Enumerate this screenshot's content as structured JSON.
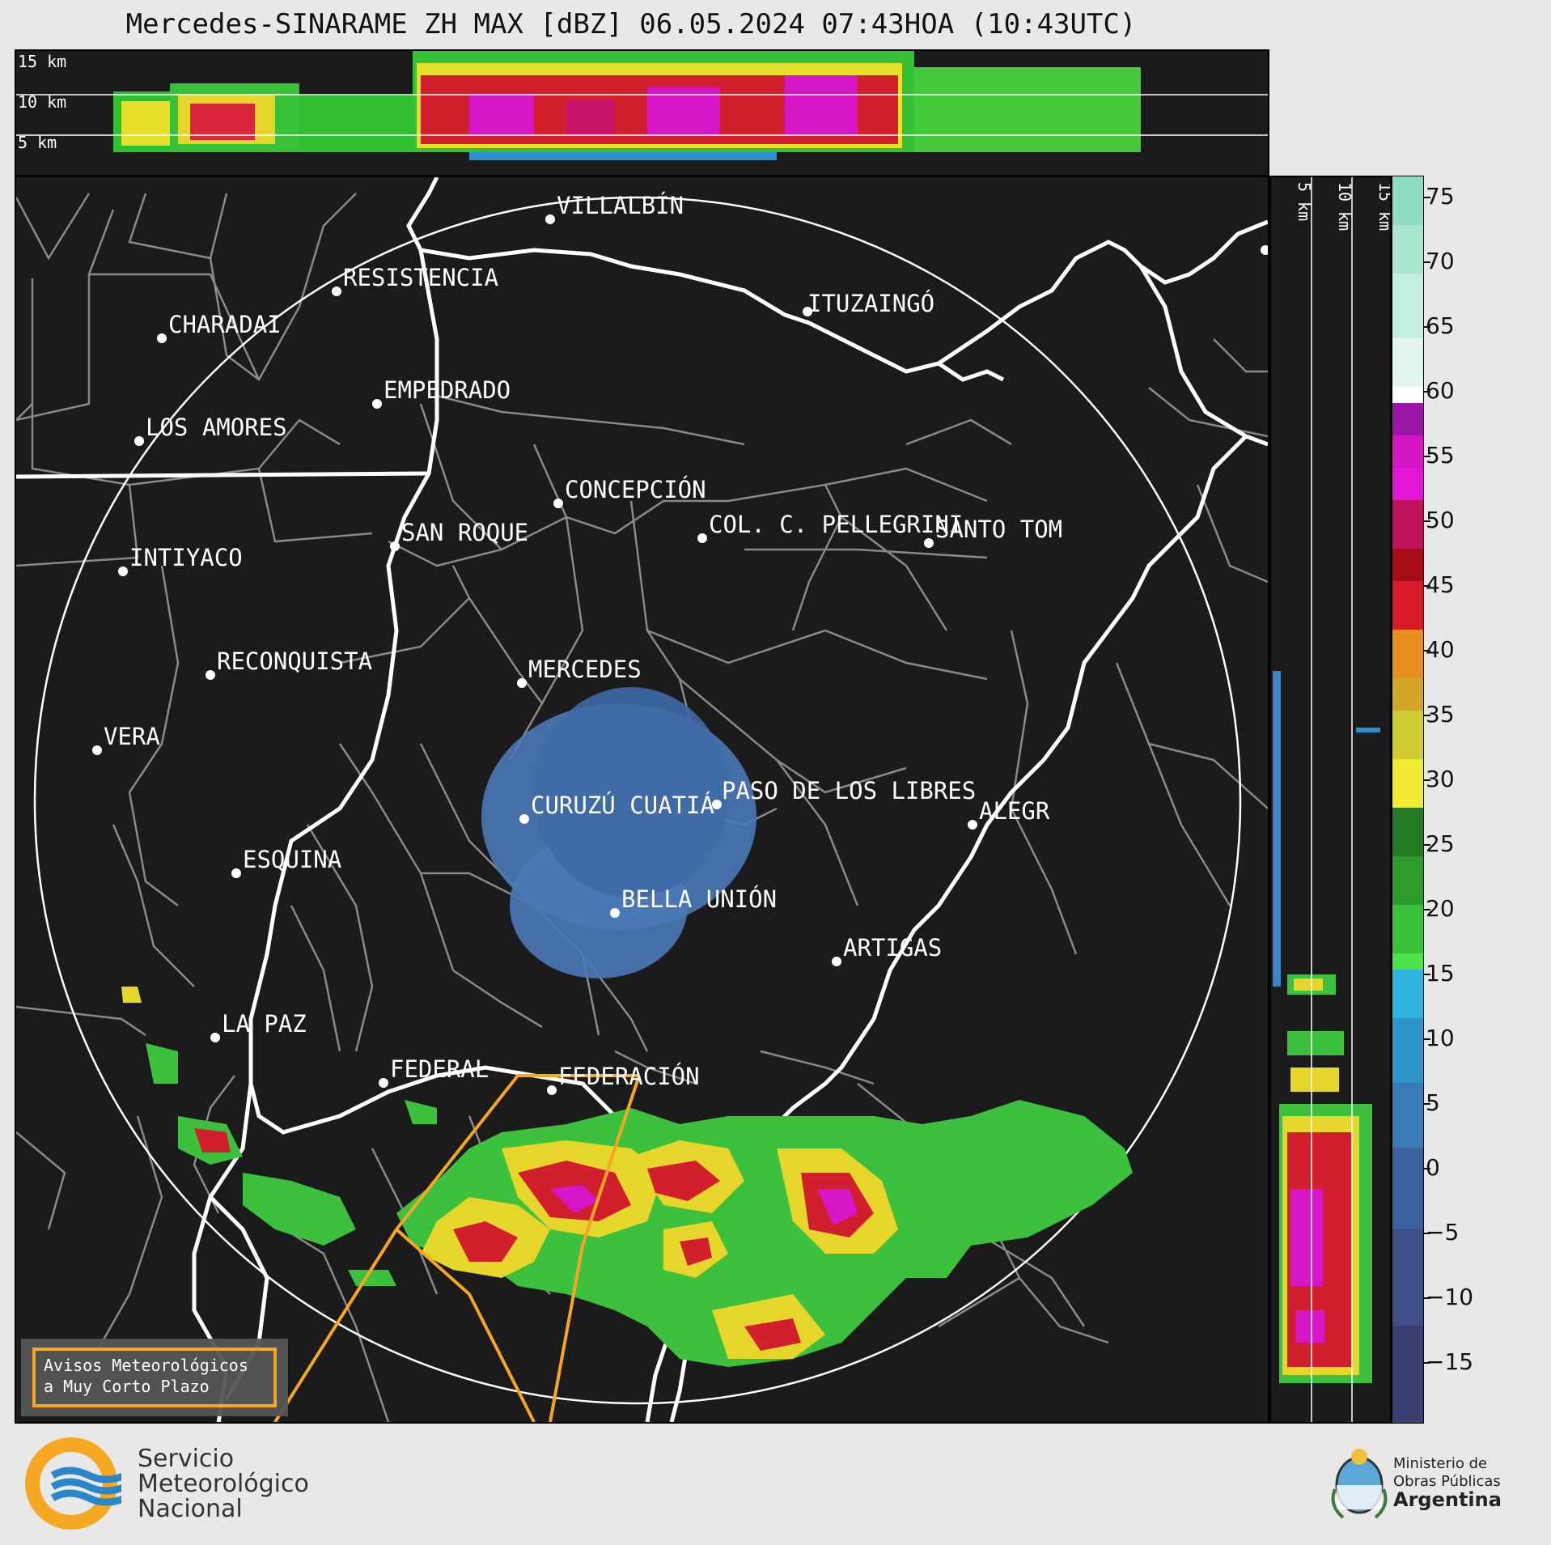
{
  "title": "Mercedes-SINARAME ZH MAX [dBZ] 06.05.2024 07:43HOA (10:43UTC)",
  "height_labels": [
    "15 km",
    "10 km",
    "5 km"
  ],
  "right_height_labels": [
    "5 km",
    "10 km",
    "15 km"
  ],
  "colorbar": {
    "ticks": [
      "75",
      "70",
      "65",
      "60",
      "55",
      "50",
      "45",
      "40",
      "35",
      "30",
      "25",
      "20",
      "15",
      "10",
      "5",
      "0",
      "−5",
      "−10",
      "−15"
    ]
  },
  "places": [
    {
      "name": "VILLALBÍN"
    },
    {
      "name": "RESISTENCIA"
    },
    {
      "name": "CHARADAI"
    },
    {
      "name": "ITUZAINGÓ"
    },
    {
      "name": "EMPEDRADO"
    },
    {
      "name": "LOS AMORES"
    },
    {
      "name": "CONCEPCIÓN"
    },
    {
      "name": "COL. C. PELLEGRINI"
    },
    {
      "name": "SANTO TOM"
    },
    {
      "name": "SAN ROQUE"
    },
    {
      "name": "INTIYACO"
    },
    {
      "name": "RECONQUISTA"
    },
    {
      "name": "MERCEDES"
    },
    {
      "name": "VERA"
    },
    {
      "name": "CURUZÚ CUATIÁ"
    },
    {
      "name": "PASO DE LOS LIBRES"
    },
    {
      "name": "ALEGR"
    },
    {
      "name": "ESQUINA"
    },
    {
      "name": "BELLA UNIÓN"
    },
    {
      "name": "ARTIGAS"
    },
    {
      "name": "LA PAZ"
    },
    {
      "name": "FEDERAL"
    },
    {
      "name": "FEDERACIÓN"
    }
  ],
  "alert_box": {
    "line1": "Avisos Meteorológicos",
    "line2": "a Muy Corto Plazo"
  },
  "logo_smn": {
    "line1": "Servicio",
    "line2": "Meteorológico",
    "line3": "Nacional"
  },
  "logo_ministerio": {
    "line1": "Ministerio de",
    "line2": "Obras Públicas",
    "line3": "Argentina"
  },
  "colors": {
    "background": "#1b1b1b",
    "border_line": "#ffffff",
    "department_line": "#8a8a8a",
    "alert_polygon": "#f5a623"
  }
}
